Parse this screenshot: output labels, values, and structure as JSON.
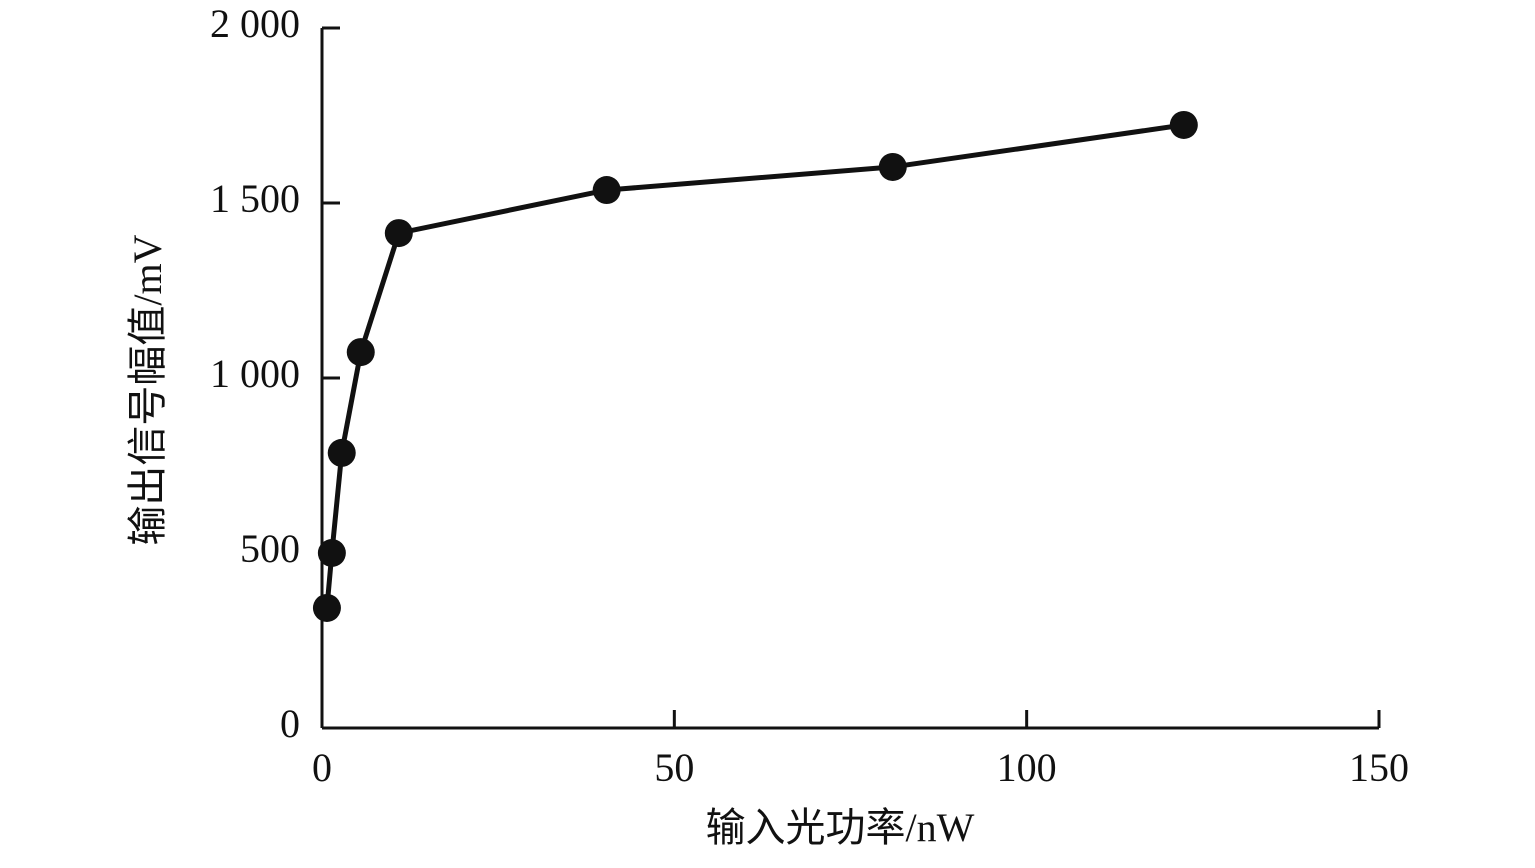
{
  "chart_data": {
    "type": "line",
    "x_label": "输入光功率/nW",
    "y_label": "输出信号幅值/mV",
    "x": [
      0.7,
      1.4,
      2.8,
      5.5,
      10.9,
      40.4,
      81.0,
      122.3
    ],
    "series": [
      {
        "color": "#111111",
        "values": [
          343,
          500,
          786,
          1074,
          1414,
          1537,
          1603,
          1723
        ]
      }
    ],
    "xlim": [
      0,
      150
    ],
    "xticks": [
      0,
      50,
      100,
      150
    ],
    "ylim": [
      0,
      2000
    ],
    "yticks": [
      0,
      500,
      {
        "value": 1000,
        "label": "1 000"
      },
      {
        "value": 1500,
        "label": "1 500"
      },
      {
        "value": 2000,
        "label": "2 000"
      }
    ],
    "grid": false
  }
}
